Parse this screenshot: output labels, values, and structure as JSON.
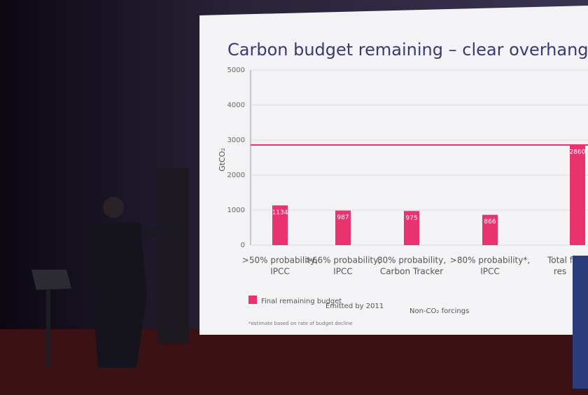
{
  "chart_data": {
    "type": "bar",
    "title": "Carbon budget remaining – clear overhang",
    "y_label": "GtCO₂",
    "categories": [
      [
        ">50% probability,",
        "IPCC"
      ],
      [
        ">66% probability,",
        "IPCC"
      ],
      [
        "80% probability,",
        "Carbon Tracker"
      ],
      [
        ">80% probability*,",
        "IPCC"
      ],
      [
        "Total f",
        "res"
      ]
    ],
    "values": [
      1134,
      987,
      975,
      866,
      2860
    ],
    "color": "#e8336e",
    "ylim": [
      0,
      5000
    ],
    "yticks": [
      0,
      1000,
      2000,
      3000,
      4000,
      5000
    ],
    "grid": true,
    "legend": [
      "Final remaining budget",
      "Emitted by 2011",
      "Non-CO₂ forcings"
    ],
    "footnote": "*estimate based on rate of budget decline"
  }
}
